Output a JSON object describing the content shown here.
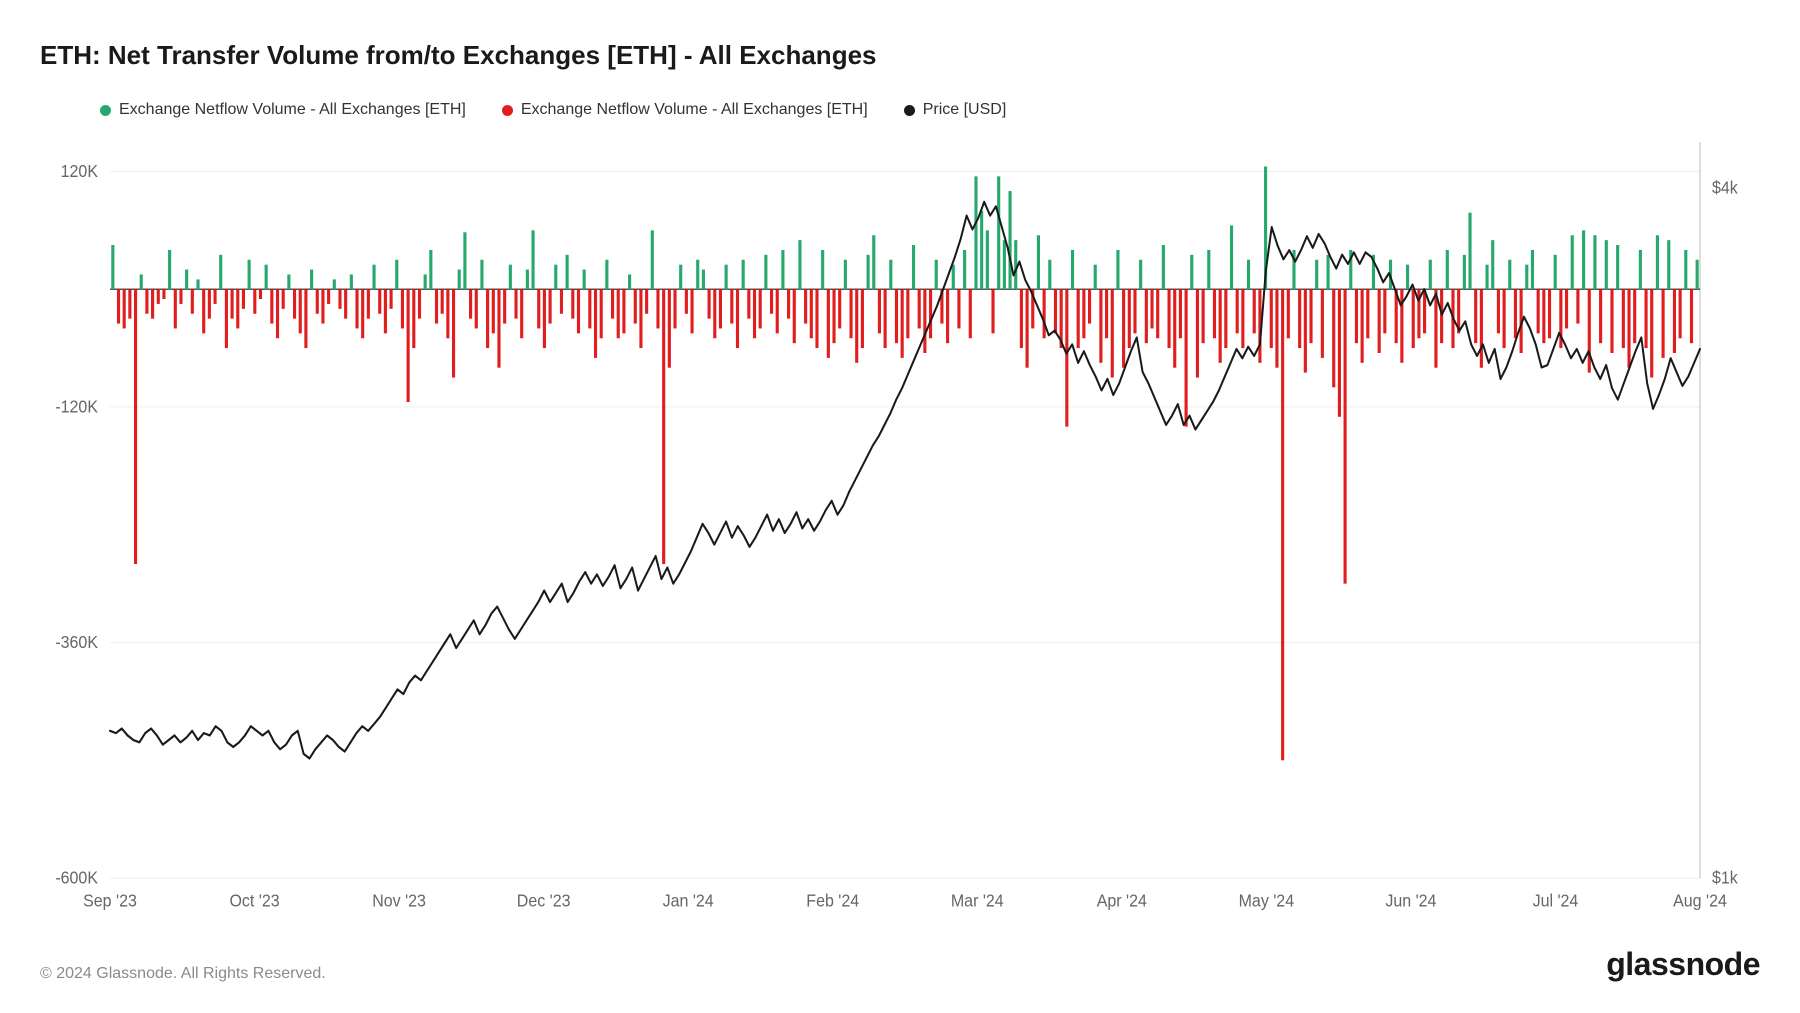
{
  "title": "ETH: Net Transfer Volume from/to Exchanges [ETH] - All Exchanges",
  "copyright": "© 2024 Glassnode. All Rights Reserved.",
  "brand": "glassnode",
  "legend": {
    "pos_label": "Exchange Netflow Volume - All Exchanges [ETH]",
    "neg_label": "Exchange Netflow Volume - All Exchanges [ETH]",
    "price_label": "Price [USD]"
  },
  "colors": {
    "positive_bar": "#27a86c",
    "negative_bar": "#e11d1d",
    "price_line": "#1a1a1a",
    "legend_price_dot": "#1a1a1a",
    "grid": "#f0f0f0",
    "axis": "#bbbbbb",
    "zero_line": "#1a1a1a",
    "background": "#ffffff",
    "axis_text": "#666666"
  },
  "chart": {
    "type": "bar-and-line",
    "left_axis": {
      "min": -600000,
      "max": 150000,
      "ticks": [
        {
          "v": 120000,
          "label": "120K"
        },
        {
          "v": -120000,
          "label": "-120K"
        },
        {
          "v": -360000,
          "label": "-360K"
        },
        {
          "v": -600000,
          "label": "-600K"
        }
      ]
    },
    "right_axis": {
      "min": 1000,
      "max": 4200,
      "ticks": [
        {
          "v": 4000,
          "label": "$4k"
        },
        {
          "v": 1000,
          "label": "$1k"
        }
      ]
    },
    "x_axis": {
      "labels": [
        "Sep '23",
        "Oct '23",
        "Nov '23",
        "Dec '23",
        "Jan '24",
        "Feb '24",
        "Mar '24",
        "Apr '24",
        "May '24",
        "Jun '24",
        "Jul '24",
        "Aug '24"
      ]
    },
    "bar_values": [
      45000,
      -35000,
      -40000,
      -30000,
      -280000,
      15000,
      -25000,
      -30000,
      -15000,
      -10000,
      40000,
      -40000,
      -15000,
      20000,
      -25000,
      10000,
      -45000,
      -30000,
      -15000,
      35000,
      -60000,
      -30000,
      -40000,
      -20000,
      30000,
      -25000,
      -10000,
      25000,
      -35000,
      -50000,
      -20000,
      15000,
      -30000,
      -45000,
      -60000,
      20000,
      -25000,
      -35000,
      -15000,
      10000,
      -20000,
      -30000,
      15000,
      -40000,
      -50000,
      -30000,
      25000,
      -25000,
      -45000,
      -20000,
      30000,
      -40000,
      -115000,
      -60000,
      -30000,
      15000,
      40000,
      -35000,
      -25000,
      -50000,
      -90000,
      20000,
      58000,
      -30000,
      -40000,
      30000,
      -60000,
      -45000,
      -80000,
      -35000,
      25000,
      -30000,
      -50000,
      20000,
      60000,
      -40000,
      -60000,
      -35000,
      25000,
      -25000,
      35000,
      -30000,
      -45000,
      20000,
      -40000,
      -70000,
      -50000,
      30000,
      -30000,
      -50000,
      -45000,
      15000,
      -35000,
      -60000,
      -25000,
      60000,
      -40000,
      -280000,
      -80000,
      -40000,
      25000,
      -25000,
      -45000,
      30000,
      20000,
      -30000,
      -50000,
      -40000,
      25000,
      -35000,
      -60000,
      30000,
      -30000,
      -50000,
      -40000,
      35000,
      -25000,
      -45000,
      40000,
      -30000,
      -55000,
      50000,
      -35000,
      -50000,
      -60000,
      40000,
      -70000,
      -55000,
      -40000,
      30000,
      -50000,
      -75000,
      -60000,
      35000,
      55000,
      -45000,
      -60000,
      30000,
      -55000,
      -70000,
      -50000,
      45000,
      -40000,
      -65000,
      -50000,
      30000,
      -35000,
      -55000,
      25000,
      -40000,
      40000,
      -50000,
      115000,
      80000,
      60000,
      -45000,
      115000,
      50000,
      100000,
      50000,
      -60000,
      -80000,
      -40000,
      55000,
      -50000,
      30000,
      -45000,
      -60000,
      -140000,
      40000,
      -60000,
      -50000,
      -35000,
      25000,
      -75000,
      -50000,
      -90000,
      40000,
      -80000,
      -60000,
      -45000,
      30000,
      -55000,
      -40000,
      -50000,
      45000,
      -60000,
      -80000,
      -50000,
      -140000,
      35000,
      -90000,
      -55000,
      40000,
      -50000,
      -75000,
      -60000,
      65000,
      -45000,
      -60000,
      30000,
      -45000,
      -75000,
      125000,
      -60000,
      -80000,
      -480000,
      -50000,
      40000,
      -60000,
      -85000,
      -55000,
      30000,
      -70000,
      35000,
      -100000,
      -130000,
      -300000,
      40000,
      -55000,
      -75000,
      -50000,
      35000,
      -65000,
      -45000,
      30000,
      -55000,
      -75000,
      25000,
      -60000,
      -50000,
      -45000,
      30000,
      -80000,
      -55000,
      40000,
      -60000,
      -45000,
      35000,
      78000,
      -55000,
      -80000,
      25000,
      50000,
      -45000,
      -60000,
      30000,
      -50000,
      -65000,
      25000,
      40000,
      -45000,
      -55000,
      -50000,
      35000,
      -60000,
      -40000,
      55000,
      -35000,
      60000,
      -85000,
      55000,
      -55000,
      50000,
      -65000,
      45000,
      -60000,
      -80000,
      -55000,
      40000,
      -60000,
      -90000,
      55000,
      -70000,
      50000,
      -65000,
      -50000,
      40000,
      -55000,
      30000
    ],
    "price_values": [
      1640,
      1630,
      1650,
      1620,
      1600,
      1590,
      1630,
      1650,
      1620,
      1580,
      1600,
      1620,
      1590,
      1610,
      1640,
      1600,
      1630,
      1620,
      1660,
      1640,
      1590,
      1570,
      1590,
      1620,
      1660,
      1640,
      1620,
      1640,
      1590,
      1560,
      1580,
      1620,
      1640,
      1540,
      1520,
      1560,
      1590,
      1620,
      1600,
      1570,
      1550,
      1590,
      1630,
      1660,
      1640,
      1670,
      1700,
      1740,
      1780,
      1820,
      1800,
      1850,
      1880,
      1860,
      1900,
      1940,
      1980,
      2020,
      2060,
      2000,
      2040,
      2080,
      2120,
      2060,
      2100,
      2150,
      2180,
      2130,
      2080,
      2040,
      2080,
      2120,
      2160,
      2200,
      2250,
      2200,
      2240,
      2280,
      2200,
      2240,
      2290,
      2330,
      2280,
      2320,
      2270,
      2310,
      2360,
      2260,
      2300,
      2350,
      2250,
      2300,
      2350,
      2400,
      2300,
      2350,
      2280,
      2320,
      2370,
      2420,
      2480,
      2540,
      2500,
      2450,
      2500,
      2550,
      2480,
      2530,
      2490,
      2440,
      2480,
      2530,
      2580,
      2510,
      2560,
      2500,
      2540,
      2590,
      2520,
      2560,
      2510,
      2550,
      2600,
      2640,
      2580,
      2620,
      2680,
      2730,
      2780,
      2830,
      2880,
      2920,
      2970,
      3020,
      3080,
      3130,
      3190,
      3250,
      3310,
      3370,
      3430,
      3490,
      3560,
      3630,
      3700,
      3780,
      3880,
      3820,
      3870,
      3940,
      3880,
      3920,
      3830,
      3740,
      3620,
      3680,
      3600,
      3550,
      3490,
      3430,
      3360,
      3380,
      3340,
      3280,
      3320,
      3240,
      3290,
      3230,
      3180,
      3120,
      3170,
      3100,
      3150,
      3220,
      3290,
      3350,
      3200,
      3150,
      3090,
      3030,
      2970,
      3010,
      3060,
      2970,
      3010,
      2950,
      2990,
      3030,
      3070,
      3120,
      3180,
      3240,
      3300,
      3260,
      3310,
      3270,
      3320,
      3640,
      3830,
      3750,
      3690,
      3730,
      3680,
      3730,
      3790,
      3740,
      3800,
      3760,
      3700,
      3650,
      3710,
      3670,
      3720,
      3670,
      3720,
      3700,
      3650,
      3590,
      3630,
      3560,
      3490,
      3530,
      3580,
      3510,
      3560,
      3490,
      3540,
      3450,
      3500,
      3430,
      3380,
      3420,
      3320,
      3270,
      3320,
      3240,
      3300,
      3170,
      3220,
      3290,
      3370,
      3440,
      3390,
      3320,
      3220,
      3230,
      3300,
      3370,
      3320,
      3260,
      3300,
      3240,
      3290,
      3220,
      3170,
      3230,
      3130,
      3080,
      3150,
      3220,
      3290,
      3350,
      3150,
      3040,
      3100,
      3170,
      3260,
      3200,
      3140,
      3180,
      3240,
      3300
    ]
  }
}
